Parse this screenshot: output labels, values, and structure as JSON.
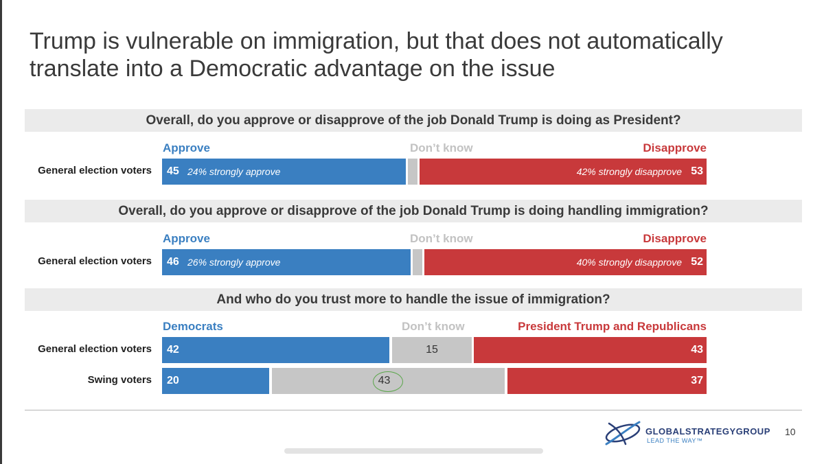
{
  "title": "Trump is vulnerable on immigration, but that does not automatically translate into a Democratic advantage on the issue",
  "chart_data": [
    {
      "type": "bar",
      "orientation": "horizontal-stacked",
      "question": "Overall, do you approve or disapprove of the job Donald Trump is doing as President?",
      "series_labels": [
        "Approve",
        "Don’t know",
        "Disapprove"
      ],
      "rows": [
        {
          "label": "General election voters",
          "values": [
            45,
            2,
            53
          ],
          "left_note": "24% strongly approve",
          "right_note": "42% strongly disapprove"
        }
      ]
    },
    {
      "type": "bar",
      "orientation": "horizontal-stacked",
      "question": "Overall, do you approve or disapprove of the job Donald Trump is doing handling immigration?",
      "series_labels": [
        "Approve",
        "Don’t know",
        "Disapprove"
      ],
      "rows": [
        {
          "label": "General election voters",
          "values": [
            46,
            2,
            52
          ],
          "left_note": "26% strongly approve",
          "right_note": "40% strongly disapprove"
        }
      ]
    },
    {
      "type": "bar",
      "orientation": "horizontal-stacked",
      "question": "And who do you trust more to handle the issue of immigration?",
      "series_labels": [
        "Democrats",
        "Don’t know",
        "President Trump and Republicans"
      ],
      "rows": [
        {
          "label": "General election voters",
          "values": [
            42,
            15,
            43
          ]
        },
        {
          "label": "Swing voters",
          "values": [
            20,
            43,
            37
          ],
          "highlight_middle": true
        }
      ]
    }
  ],
  "colors": {
    "blue": "#3a7fc1",
    "gray": "#c6c6c6",
    "red": "#c8393b",
    "highlight": "#5aa64a"
  },
  "footer": {
    "logo_text": "GLOBALSTRATEGYGROUP",
    "tagline": "LEAD THE WAY™",
    "page_number": "10"
  }
}
